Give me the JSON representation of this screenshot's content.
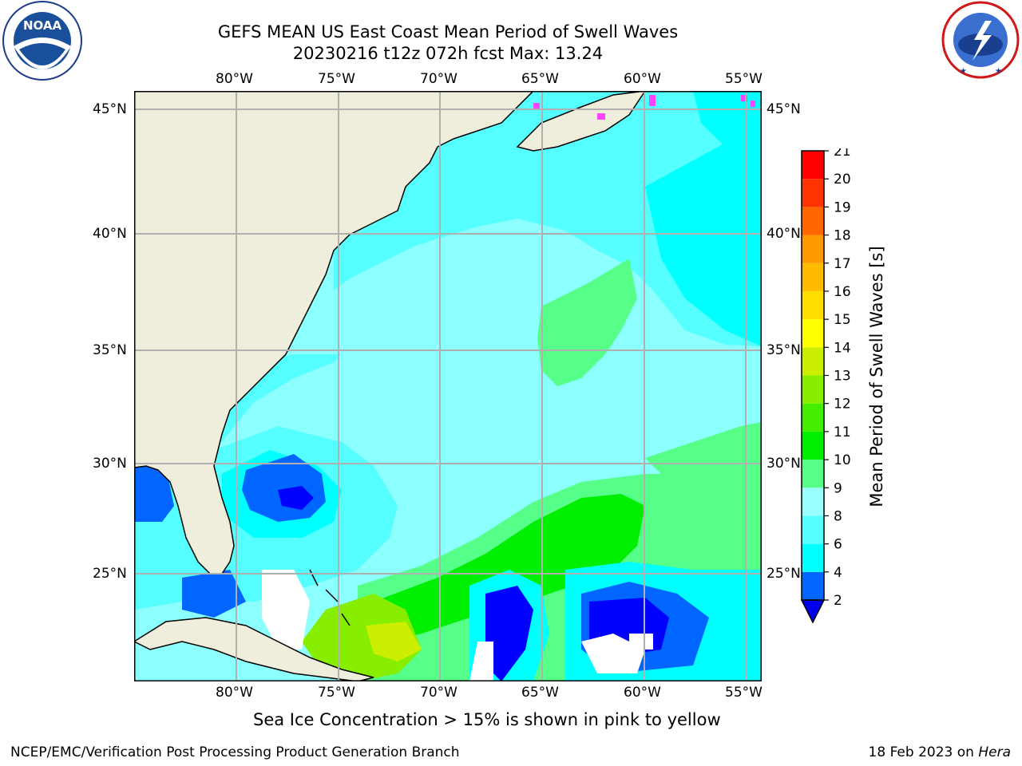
{
  "title": {
    "line1": "GEFS MEAN US East Coast Mean Period of Swell Waves",
    "line2": "20230216 t12z 072h fcst   Max: 13.24"
  },
  "logos": {
    "left_text": "NOAA",
    "left_ring_text": "NATIONAL OCEANIC AND ATMOSPHERIC ADMINISTRATION · U.S. DEPARTMENT OF COMMERCE",
    "right_ring_text": "NATIONAL WEATHER SERVICE"
  },
  "map": {
    "lon_labels": [
      "80°W",
      "75°W",
      "70°W",
      "65°W",
      "60°W",
      "55°W"
    ],
    "lat_labels": [
      "45°N",
      "40°N",
      "35°N",
      "30°N",
      "25°N"
    ],
    "lon_range": [
      -85,
      -54
    ],
    "lat_range": [
      20.5,
      46
    ],
    "colors": {
      "land": "#efeddc",
      "ocean_default": "#8cffff",
      "grid": "#b0b0b0"
    }
  },
  "colorbar": {
    "label": "Mean Period of Swell Waves [s]",
    "ticks": [
      "2",
      "4",
      "6",
      "8",
      "9",
      "10",
      "11",
      "12",
      "13",
      "14",
      "15",
      "16",
      "17",
      "18",
      "19",
      "20",
      "21"
    ],
    "colors": [
      "#0000ff",
      "#0066ff",
      "#00ffff",
      "#55ffff",
      "#99ffff",
      "#55ff88",
      "#00ee00",
      "#44ee00",
      "#88ee00",
      "#ccee00",
      "#ffff00",
      "#ffdd00",
      "#ffbb00",
      "#ff9900",
      "#ff6600",
      "#ff3300",
      "#ff0000"
    ],
    "extend_color": "#0000ee"
  },
  "annotations": {
    "sea_ice_note": "Sea Ice Concentration > 15% is shown in pink to yellow",
    "credit_left": "NCEP/EMC/Verification Post Processing Product Generation Branch",
    "credit_date": "18 Feb 2023 on ",
    "credit_system": "Hera"
  }
}
